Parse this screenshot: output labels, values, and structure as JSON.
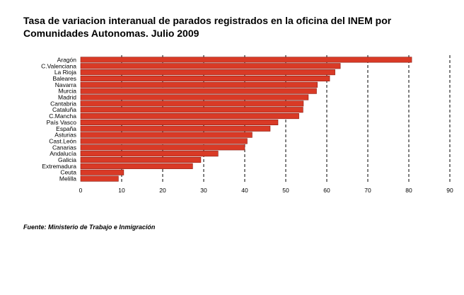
{
  "chart_data": {
    "type": "bar",
    "orientation": "horizontal",
    "title": "Tasa de variacion interanual de parados registrados en la oficina del INEM por Comunidades Autonomas. Julio 2009",
    "source": "Fuente: Ministerio de Trabajo e Inmigración",
    "categories": [
      "Aragón",
      "C.Valenciana",
      "La Rioja",
      "Baleares",
      "Navarra",
      "Murcia",
      "Madrid",
      "Cantabria",
      "Cataluña",
      "C.Mancha",
      "País Vasco",
      "España",
      "Asturias",
      "Cast.León",
      "Canarias",
      "Andalucía",
      "Galicia",
      "Extremadura",
      "Ceuta",
      "Melilla"
    ],
    "values": [
      80.7,
      63.3,
      62.0,
      60.7,
      57.7,
      57.5,
      55.5,
      54.3,
      54.2,
      53.2,
      48.1,
      46.2,
      41.8,
      40.6,
      40.0,
      33.5,
      29.3,
      27.3,
      10.5,
      9.2
    ],
    "xlim": [
      0,
      90
    ],
    "xticks": [
      0,
      10,
      20,
      30,
      40,
      50,
      60,
      70,
      80,
      90
    ],
    "grid": "vertical-dashed",
    "legend": "none",
    "bar_color": "#d93a26",
    "bar_edge_color": "#8a1a10"
  }
}
